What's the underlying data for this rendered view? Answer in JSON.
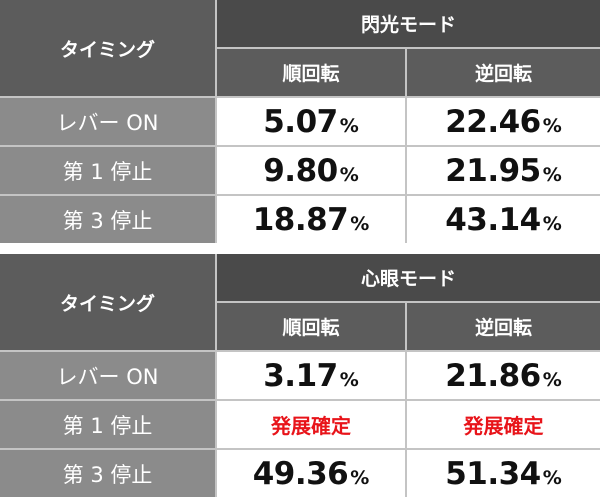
{
  "tables": [
    {
      "header": {
        "timing": "タイミング",
        "mode": "閃光モード",
        "columns": [
          "順回転",
          "逆回転"
        ]
      },
      "rows": [
        {
          "label": "レバー ON",
          "cells": [
            {
              "number": "5.07",
              "unit": "%"
            },
            {
              "number": "22.46",
              "unit": "%"
            }
          ]
        },
        {
          "label": "第 1 停止",
          "cells": [
            {
              "number": "9.80",
              "unit": "%"
            },
            {
              "number": "21.95",
              "unit": "%"
            }
          ]
        },
        {
          "label": "第 3 停止",
          "cells": [
            {
              "number": "18.87",
              "unit": "%"
            },
            {
              "number": "43.14",
              "unit": "%"
            }
          ]
        }
      ]
    },
    {
      "header": {
        "timing": "タイミング",
        "mode": "心眼モード",
        "columns": [
          "順回転",
          "逆回転"
        ]
      },
      "rows": [
        {
          "label": "レバー ON",
          "cells": [
            {
              "number": "3.17",
              "unit": "%"
            },
            {
              "number": "21.86",
              "unit": "%"
            }
          ]
        },
        {
          "label": "第 1 停止",
          "cells": [
            "発展確定",
            "発展確定"
          ]
        },
        {
          "label": "第 3 停止",
          "cells": [
            {
              "number": "49.36",
              "unit": "%"
            },
            {
              "number": "51.34",
              "unit": "%"
            }
          ]
        }
      ]
    }
  ]
}
